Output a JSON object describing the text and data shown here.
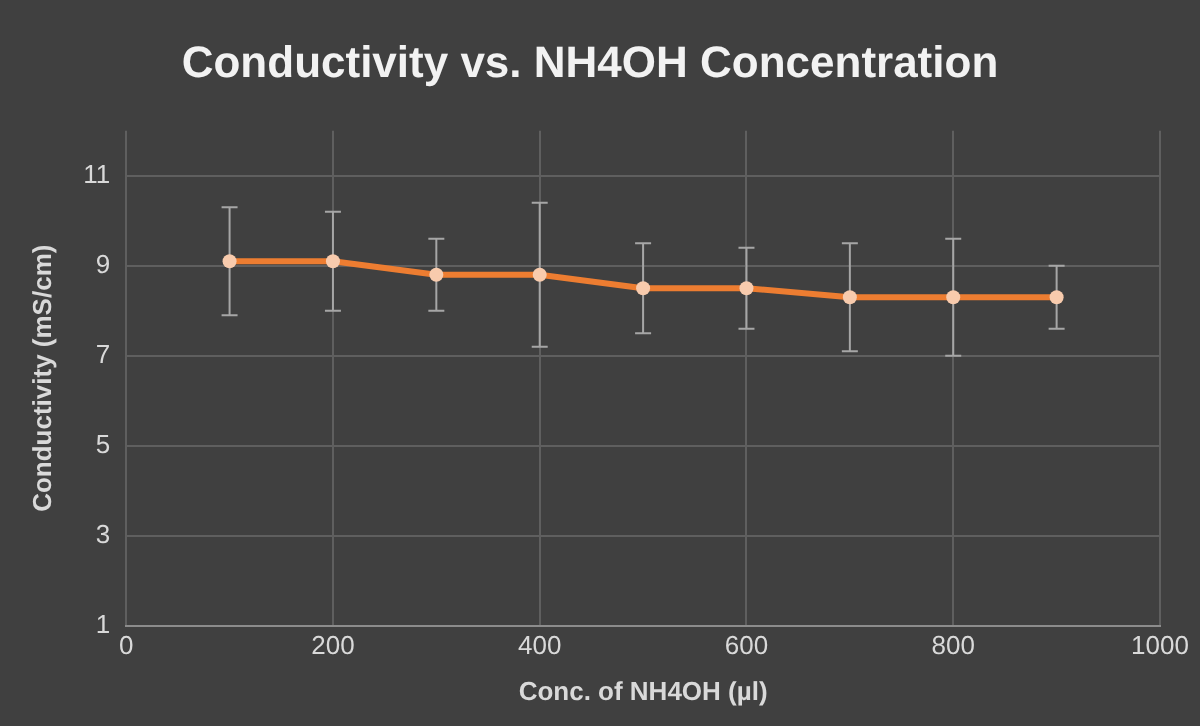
{
  "chart_data": {
    "type": "line",
    "title": "Conductivity vs. NH4OH Concentration",
    "xlabel": "Conc. of NH4OH (µl)",
    "ylabel": "Conductivity (mS/cm)",
    "x": [
      100,
      200,
      300,
      400,
      500,
      600,
      700,
      800,
      900
    ],
    "series": [
      {
        "color": "#ed7d31",
        "values": [
          9.1,
          9.1,
          8.8,
          8.8,
          8.5,
          8.5,
          8.3,
          8.3,
          8.3
        ],
        "errors": [
          1.2,
          1.1,
          0.8,
          1.6,
          1.0,
          0.9,
          1.2,
          1.3,
          0.7
        ]
      }
    ],
    "xlim": [
      0,
      1000
    ],
    "xticks": [
      0,
      200,
      400,
      600,
      800,
      1000
    ],
    "ylim": [
      1,
      12
    ],
    "yticks": [
      1,
      3,
      5,
      7,
      9,
      11
    ],
    "grid": true,
    "legend": false,
    "marker": "circle",
    "line_style": "solid"
  }
}
